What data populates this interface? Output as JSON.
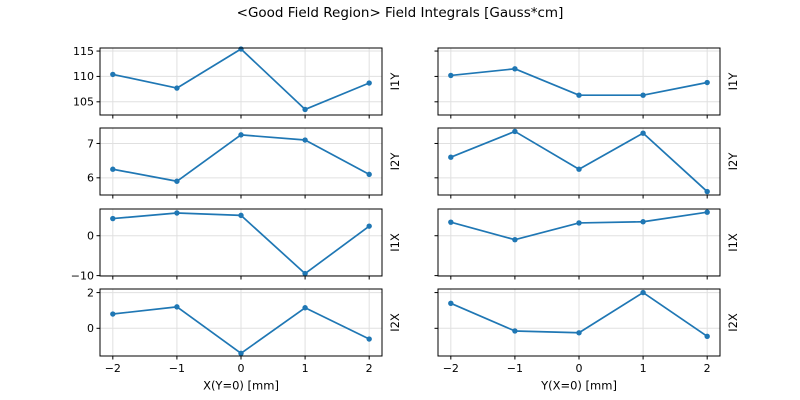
{
  "figure": {
    "title": "<Good Field Region> Field Integrals [Gauss*cm]",
    "background": "#ffffff"
  },
  "chart_data": {
    "type": "line",
    "title": "<Good Field Region> Field Integrals [Gauss*cm]",
    "line_color": "#1f77b4",
    "grid": true,
    "grid_color": "#e0e0e0",
    "marker": "circle",
    "legend": "none",
    "x": [
      -2,
      -1,
      0,
      1,
      2
    ],
    "xlim": [
      -2.2,
      2.2
    ],
    "xticks": [
      -2,
      -1,
      0,
      1,
      2
    ],
    "columns": [
      {
        "xlabel": "X(Y=0) [mm]"
      },
      {
        "xlabel": "Y(X=0) [mm]"
      }
    ],
    "rows": [
      {
        "ylabel": "I1Y",
        "yticks": [
          105,
          110,
          115
        ],
        "ylim": [
          102.4,
          115.6
        ],
        "series": [
          {
            "name": "I1Y vs X(Y=0)",
            "values": [
              110.4,
              107.7,
              115.4,
              103.5,
              108.7
            ]
          },
          {
            "name": "I1Y vs Y(X=0)",
            "values": [
              110.2,
              111.5,
              106.3,
              106.3,
              108.8
            ]
          }
        ]
      },
      {
        "ylabel": "I2Y",
        "yticks": [
          6,
          7
        ],
        "ylim": [
          5.5,
          7.45
        ],
        "series": [
          {
            "name": "I2Y vs X(Y=0)",
            "values": [
              6.25,
              5.9,
              7.25,
              7.1,
              6.1
            ]
          },
          {
            "name": "I2Y vs Y(X=0)",
            "values": [
              6.6,
              7.35,
              6.25,
              7.3,
              5.6
            ]
          }
        ]
      },
      {
        "ylabel": "I1X",
        "yticks": [
          -10,
          0
        ],
        "ylim": [
          -10.1,
          6.7
        ],
        "series": [
          {
            "name": "I1X vs X(Y=0)",
            "values": [
              4.3,
              5.7,
              5.1,
              -9.5,
              2.4
            ]
          },
          {
            "name": "I1X vs Y(X=0)",
            "values": [
              3.4,
              -1.0,
              3.2,
              3.5,
              5.9
            ]
          }
        ]
      },
      {
        "ylabel": "I2X",
        "yticks": [
          0,
          2
        ],
        "ylim": [
          -1.55,
          2.2
        ],
        "series": [
          {
            "name": "I2X vs X(Y=0)",
            "values": [
              0.8,
              1.2,
              -1.4,
              1.15,
              -0.6
            ]
          },
          {
            "name": "I2X vs Y(X=0)",
            "values": [
              1.4,
              -0.15,
              -0.25,
              2.0,
              -0.45
            ]
          }
        ]
      }
    ]
  }
}
